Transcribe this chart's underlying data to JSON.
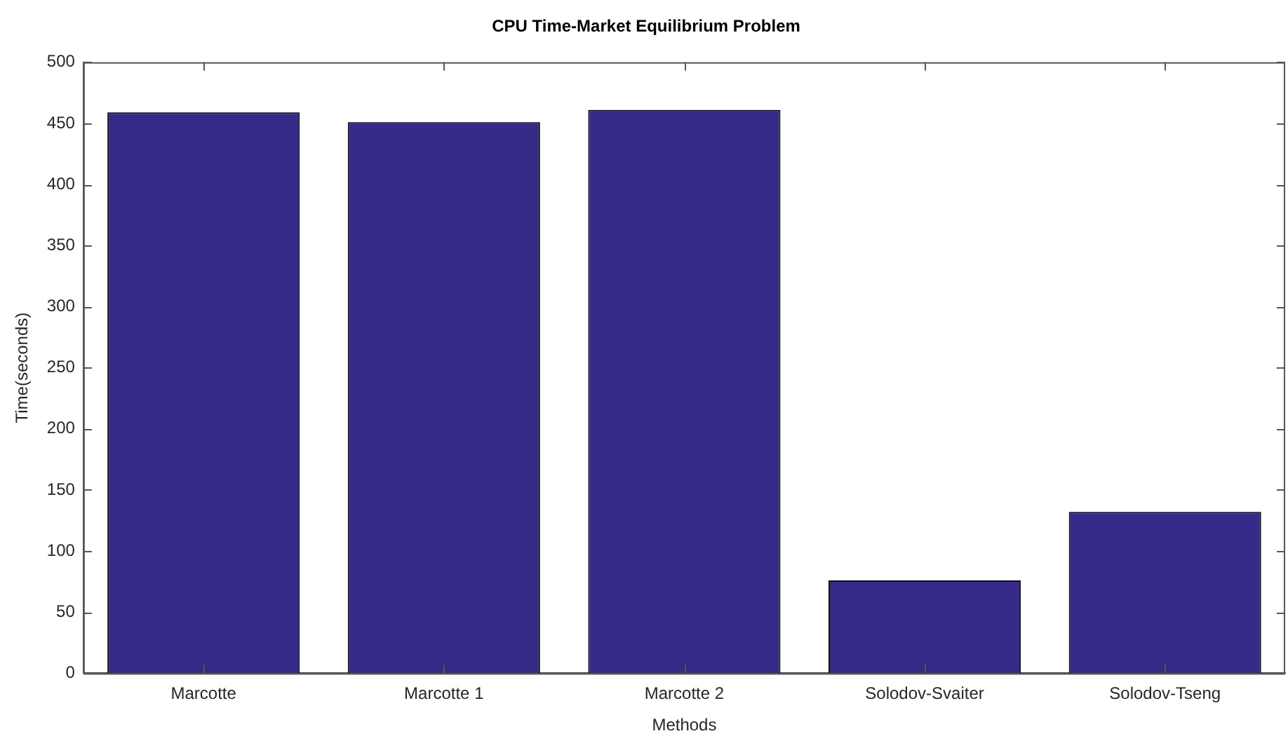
{
  "chart_data": {
    "type": "bar",
    "title": "CPU Time-Market Equilibrium Problem",
    "xlabel": "Methods",
    "ylabel": "Time(seconds)",
    "categories": [
      "Marcotte",
      "Marcotte 1",
      "Marcotte 2",
      "Solodov-Svaiter",
      "Solodov-Tseng"
    ],
    "values": [
      459,
      451,
      461,
      76,
      132
    ],
    "color": "#352a87",
    "ylim": [
      0,
      500
    ],
    "yticks": [
      0,
      50,
      100,
      150,
      200,
      250,
      300,
      350,
      400,
      450,
      500
    ],
    "grid": false,
    "legend": false
  }
}
